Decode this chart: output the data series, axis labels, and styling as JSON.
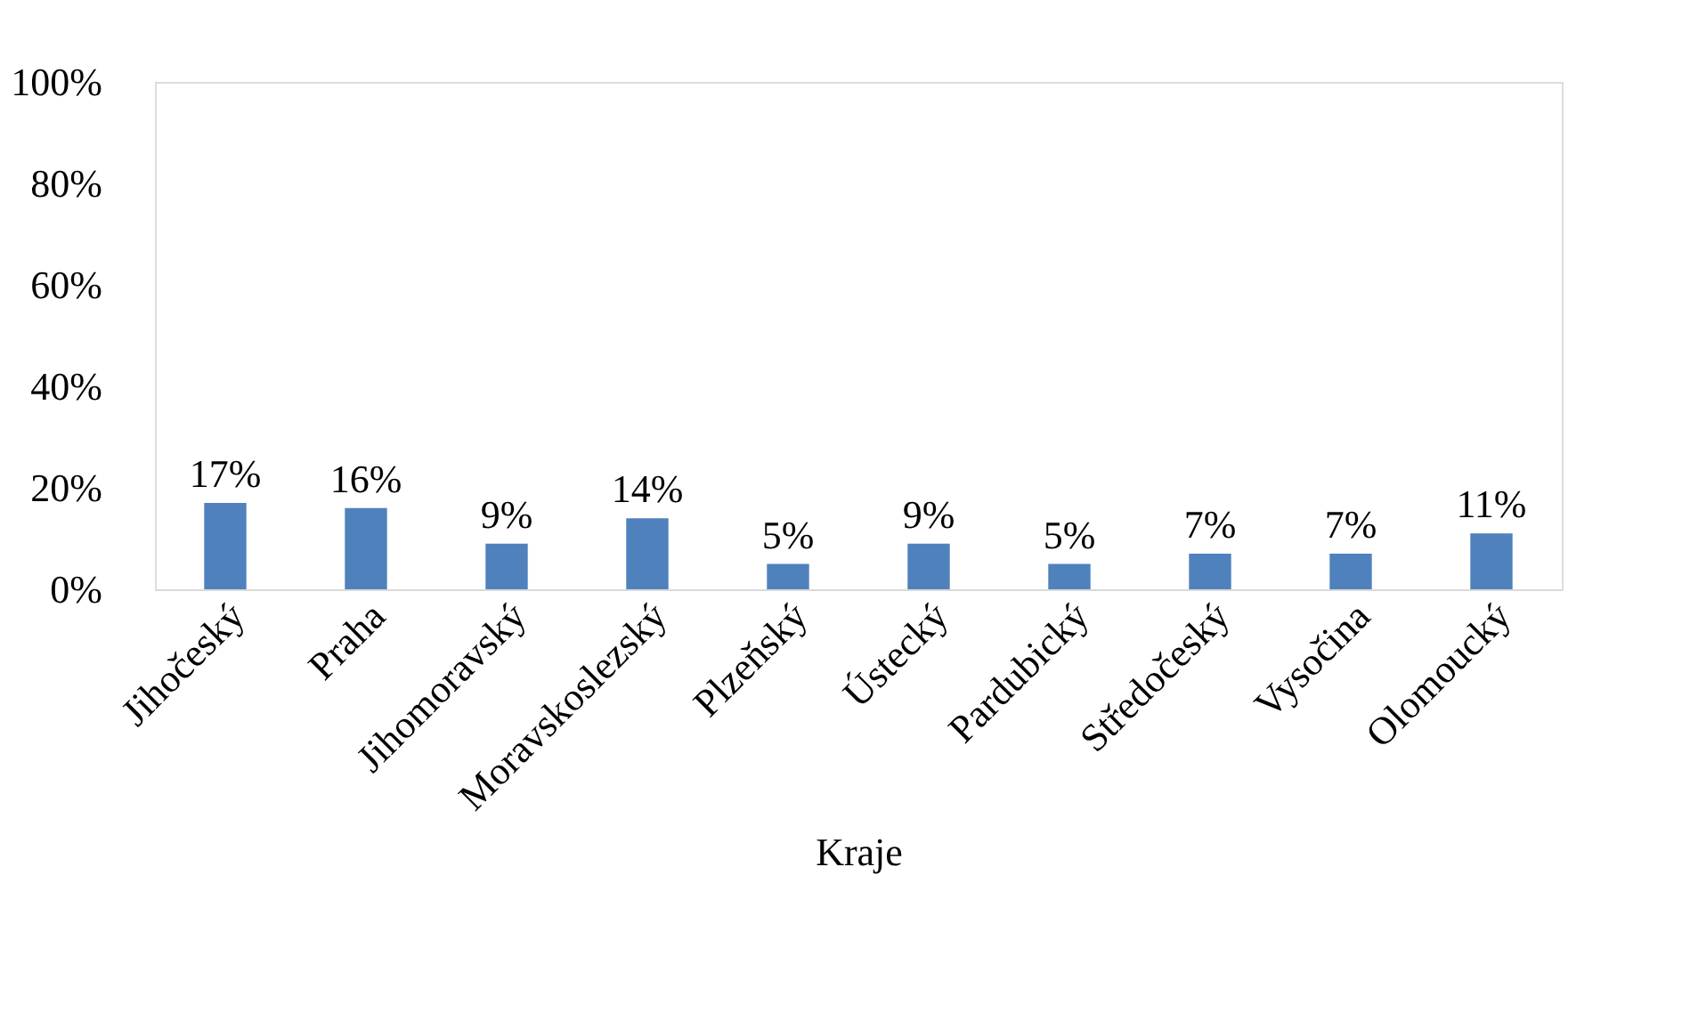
{
  "chart_data": {
    "type": "bar",
    "categories": [
      "Jihočeský",
      "Praha",
      "Jihomoravský",
      "Moravskoslezský",
      "Plzeňský",
      "Ústecký",
      "Pardubický",
      "Středočeský",
      "Vysočina",
      "Olomoucký"
    ],
    "values": [
      17,
      16,
      9,
      14,
      5,
      9,
      5,
      7,
      7,
      11
    ],
    "value_labels": [
      "17%",
      "16%",
      "9%",
      "14%",
      "5%",
      "9%",
      "5%",
      "7%",
      "7%",
      "11%"
    ],
    "color": "#4f81bd",
    "xlabel": "Kraje",
    "ylim": [
      0,
      100
    ],
    "yticks": [
      {
        "value": 0,
        "label": "0%"
      },
      {
        "value": 20,
        "label": "20%"
      },
      {
        "value": 40,
        "label": "40%"
      },
      {
        "value": 60,
        "label": "60%"
      },
      {
        "value": 80,
        "label": "80%"
      },
      {
        "value": 100,
        "label": "100%"
      }
    ],
    "grid": false
  }
}
